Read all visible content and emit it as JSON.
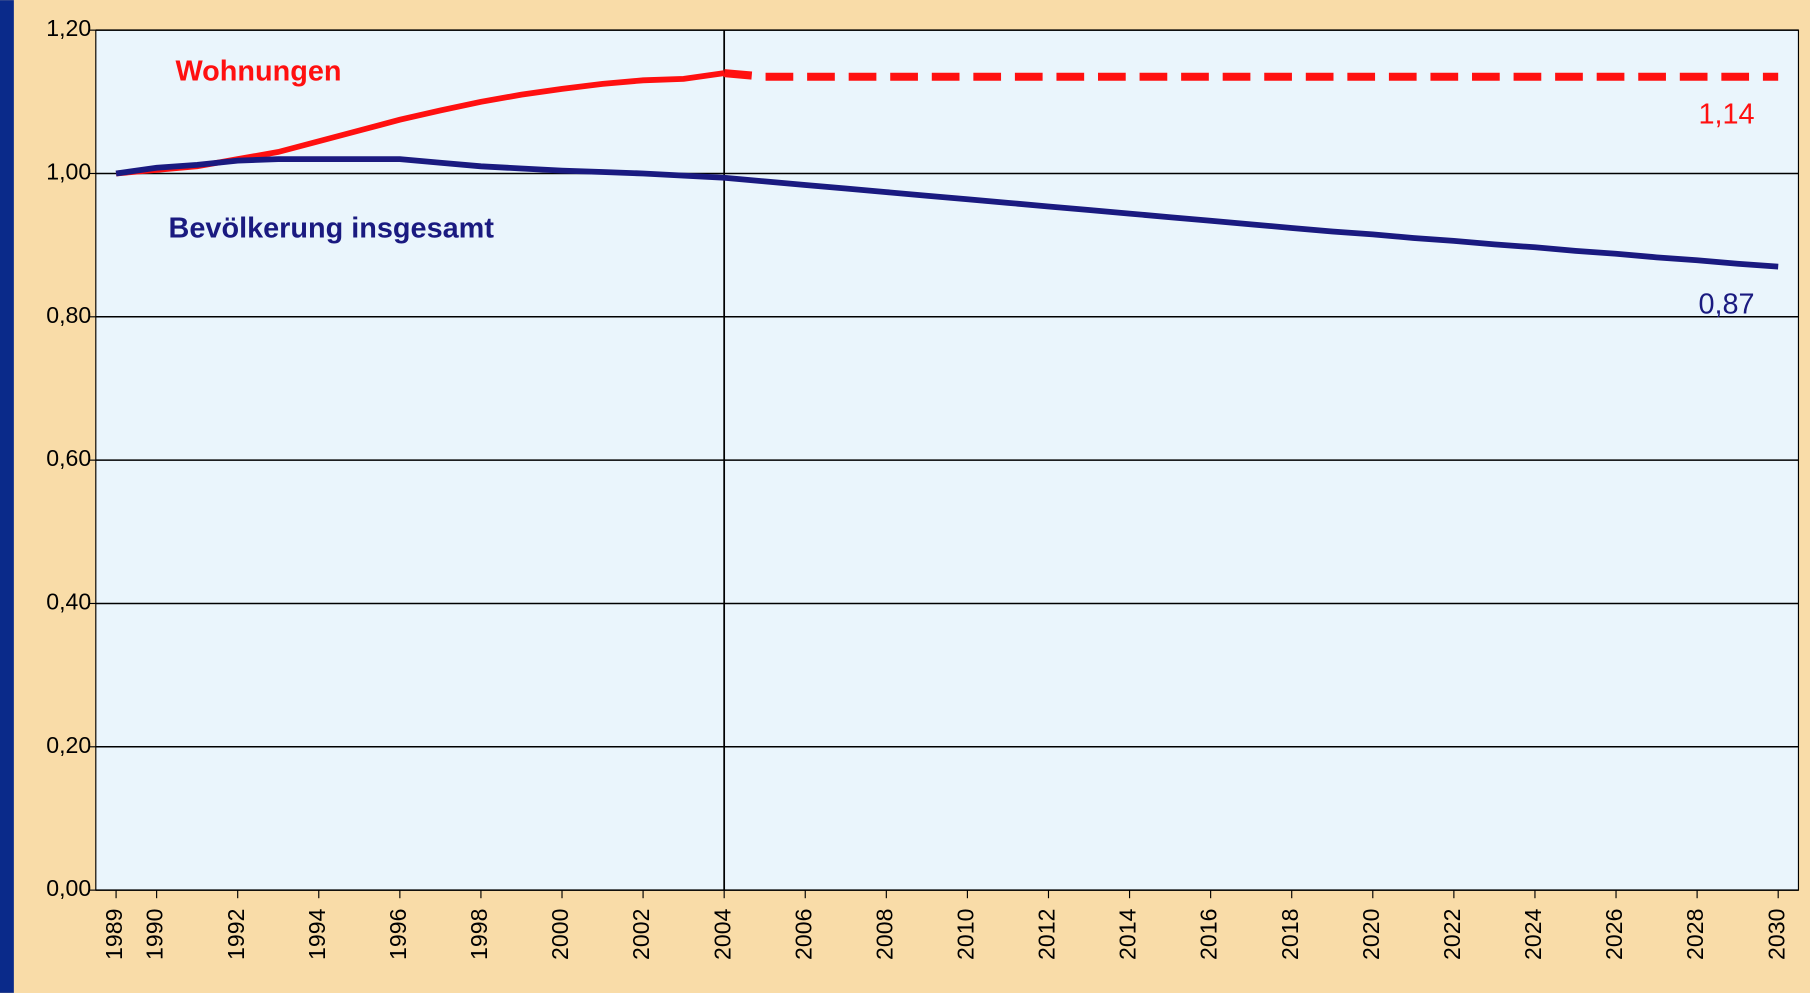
{
  "chart_data": {
    "type": "line",
    "x": [
      1989,
      1990,
      1991,
      1992,
      1993,
      1994,
      1995,
      1996,
      1997,
      1998,
      1999,
      2000,
      2001,
      2002,
      2003,
      2004,
      2005,
      2006,
      2007,
      2008,
      2009,
      2010,
      2011,
      2012,
      2013,
      2014,
      2015,
      2016,
      2017,
      2018,
      2019,
      2020,
      2021,
      2022,
      2023,
      2024,
      2025,
      2026,
      2027,
      2028,
      2029,
      2030
    ],
    "series": [
      {
        "name": "Wohnungen",
        "color": "#ff1010",
        "dash_from_index": 15,
        "end_label": "1,14",
        "values": [
          1.0,
          1.005,
          1.01,
          1.02,
          1.03,
          1.045,
          1.06,
          1.075,
          1.088,
          1.1,
          1.11,
          1.118,
          1.125,
          1.13,
          1.132,
          1.14,
          1.135,
          1.135,
          1.135,
          1.135,
          1.135,
          1.135,
          1.135,
          1.135,
          1.135,
          1.135,
          1.135,
          1.135,
          1.135,
          1.135,
          1.135,
          1.135,
          1.135,
          1.135,
          1.135,
          1.135,
          1.135,
          1.135,
          1.135,
          1.135,
          1.135,
          1.135
        ]
      },
      {
        "name": "Bevölkerung insgesamt",
        "color": "#1a1a80",
        "end_label": "0,87",
        "values": [
          1.0,
          1.008,
          1.012,
          1.018,
          1.02,
          1.02,
          1.02,
          1.02,
          1.015,
          1.01,
          1.007,
          1.004,
          1.002,
          1.0,
          0.997,
          0.994,
          0.989,
          0.984,
          0.979,
          0.974,
          0.969,
          0.964,
          0.959,
          0.954,
          0.949,
          0.944,
          0.939,
          0.934,
          0.929,
          0.924,
          0.919,
          0.915,
          0.91,
          0.906,
          0.901,
          0.897,
          0.892,
          0.888,
          0.883,
          0.879,
          0.874,
          0.87
        ]
      }
    ],
    "vline": 2004,
    "xlim": [
      1988.5,
      2030.5
    ],
    "xticks": [
      1989,
      1990,
      1992,
      1994,
      1996,
      1998,
      2000,
      2002,
      2004,
      2006,
      2008,
      2010,
      2012,
      2014,
      2016,
      2018,
      2020,
      2022,
      2024,
      2026,
      2028,
      2030
    ],
    "ylim": [
      0,
      1.2
    ],
    "yticks": [
      {
        "value": 0,
        "label": "0,00"
      },
      {
        "value": 0.2,
        "label": "0,20"
      },
      {
        "value": 0.4,
        "label": "0,40"
      },
      {
        "value": 0.6,
        "label": "0,60"
      },
      {
        "value": 0.8,
        "label": "0,80"
      },
      {
        "value": 1.0,
        "label": "1,00"
      },
      {
        "value": 1.2,
        "label": "1,20"
      }
    ],
    "grid": true
  }
}
